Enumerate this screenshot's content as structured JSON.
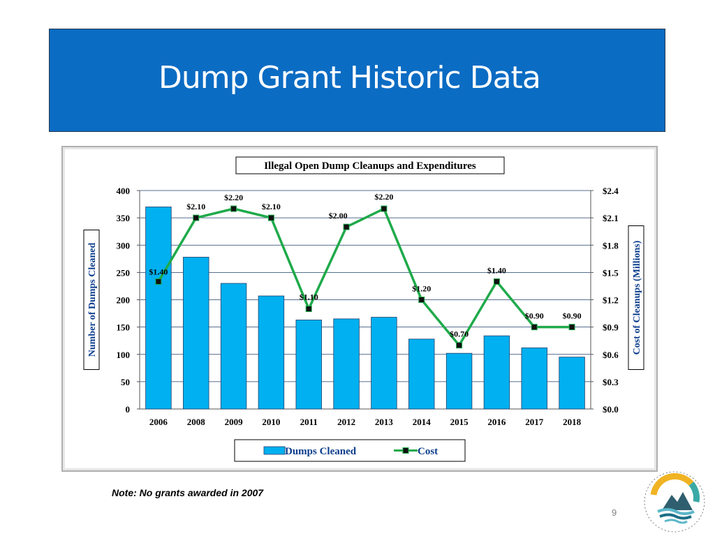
{
  "slide": {
    "title": "Dump Grant Historic Data",
    "note": "Note: No grants awarded in 2007",
    "page_number": "9",
    "colors": {
      "banner": "#0b6cc3",
      "bars": "#00b0f0",
      "line": "#1faa4a",
      "axis_label": "#0b3d8c"
    }
  },
  "chart_data": {
    "type": "bar",
    "title": "Illegal Open Dump Cleanups and Expenditures",
    "categories": [
      "2006",
      "2008",
      "2009",
      "2010",
      "2011",
      "2012",
      "2013",
      "2014",
      "2015",
      "2016",
      "2017",
      "2018"
    ],
    "series": [
      {
        "name": "Dumps Cleaned",
        "type": "bar",
        "axis": "left",
        "values": [
          370,
          278,
          230,
          207,
          163,
          165,
          168,
          128,
          102,
          134,
          112,
          95
        ]
      },
      {
        "name": "Cost",
        "type": "line",
        "axis": "right",
        "values": [
          1.4,
          2.1,
          2.2,
          2.1,
          1.1,
          2.0,
          2.2,
          1.2,
          0.7,
          1.4,
          0.9,
          0.9
        ],
        "labels": [
          "$1.40",
          "$2.10",
          "$2.20",
          "$2.10",
          "$1.10",
          "$2.00",
          "$2.20",
          "$1.20",
          "$0.70",
          "$1.40",
          "$0.90",
          "$0.90"
        ]
      }
    ],
    "ylabel": "Number of Dumps Cleaned",
    "y2label": "Cost of Cleanups (Millions)",
    "ylim": [
      0,
      400
    ],
    "y2lim": [
      0,
      2.4
    ],
    "yticks": [
      "0",
      "50",
      "100",
      "150",
      "200",
      "250",
      "300",
      "350",
      "400"
    ],
    "y2ticks": [
      "$0.0",
      "$0.3",
      "$0.6",
      "$0.9",
      "$1.2",
      "$1.5",
      "$1.8",
      "$2.1",
      "$2.4"
    ],
    "grid": true,
    "legend_position": "bottom"
  }
}
